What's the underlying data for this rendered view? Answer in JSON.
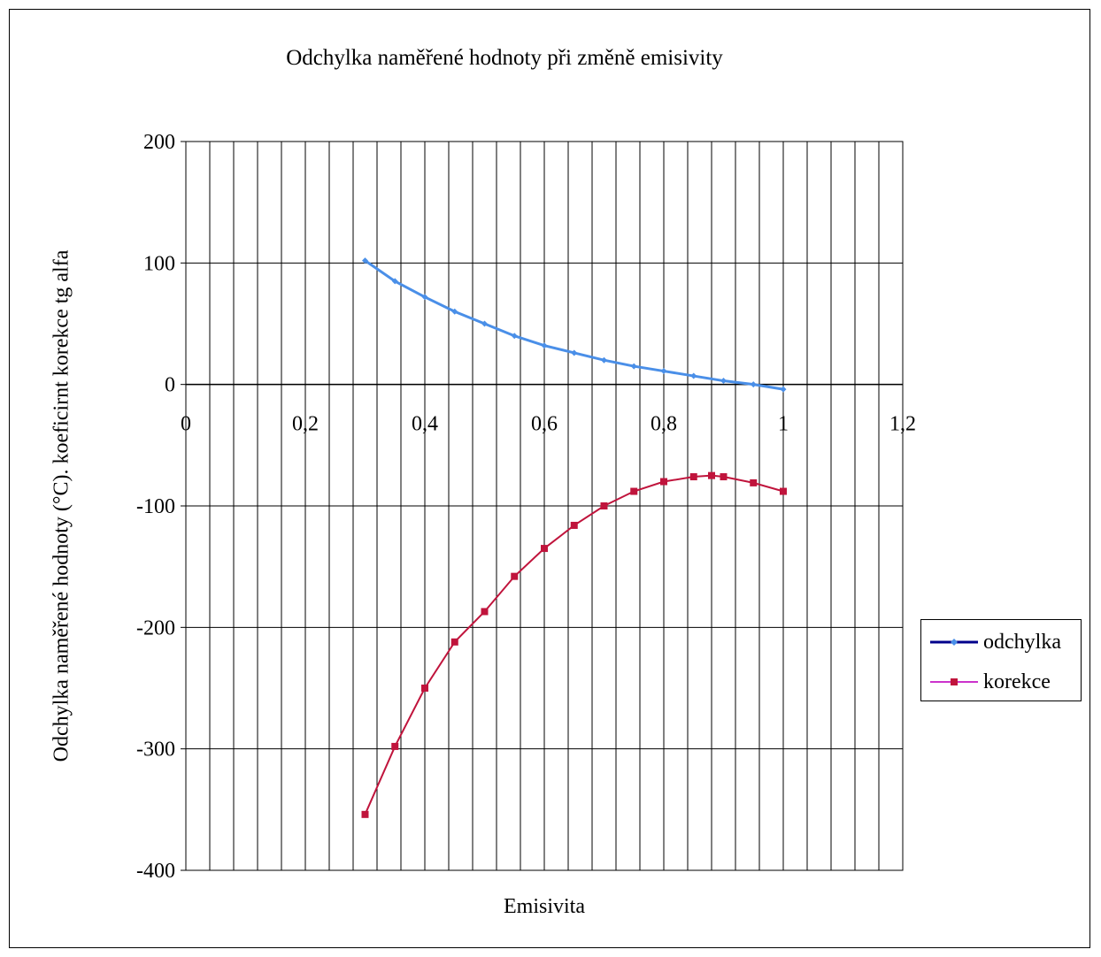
{
  "chart_data": {
    "type": "line",
    "title": "Odchylka naměřené hodnoty při změně emisivity",
    "xlabel": "Emisivita",
    "ylabel": "Odchylka naměřené hodnoty (°C). koeficirnt korekce tg alfa",
    "xlim": [
      0,
      1.2
    ],
    "ylim": [
      -400,
      200
    ],
    "x_ticks": [
      "0",
      "0,2",
      "0,4",
      "0,6",
      "0,8",
      "1",
      "1,2"
    ],
    "y_ticks": [
      "200",
      "100",
      "0",
      "-100",
      "-200",
      "-300",
      "-400"
    ],
    "grid": true,
    "legend_position": "right",
    "series": [
      {
        "name": "odchylka",
        "color": "#4a8fe8",
        "legend_color": "#00008b",
        "marker": "diamond",
        "x": [
          0.3,
          0.35,
          0.4,
          0.45,
          0.5,
          0.55,
          0.6,
          0.65,
          0.7,
          0.75,
          0.8,
          0.85,
          0.9,
          0.95,
          1.0
        ],
        "y": [
          102,
          85,
          72,
          60,
          50,
          40,
          32,
          26,
          20,
          15,
          11,
          7,
          3,
          0,
          -4
        ]
      },
      {
        "name": "korekce",
        "color": "#c0143c",
        "legend_color": "#cc33cc",
        "marker": "square",
        "x": [
          0.3,
          0.35,
          0.4,
          0.45,
          0.5,
          0.55,
          0.6,
          0.65,
          0.7,
          0.75,
          0.8,
          0.85,
          0.88,
          0.9,
          0.95,
          1.0
        ],
        "y": [
          -354,
          -298,
          -250,
          -212,
          -187,
          -158,
          -135,
          -116,
          -100,
          -88,
          -80,
          -76,
          -75,
          -76,
          -81,
          -88
        ]
      }
    ]
  }
}
